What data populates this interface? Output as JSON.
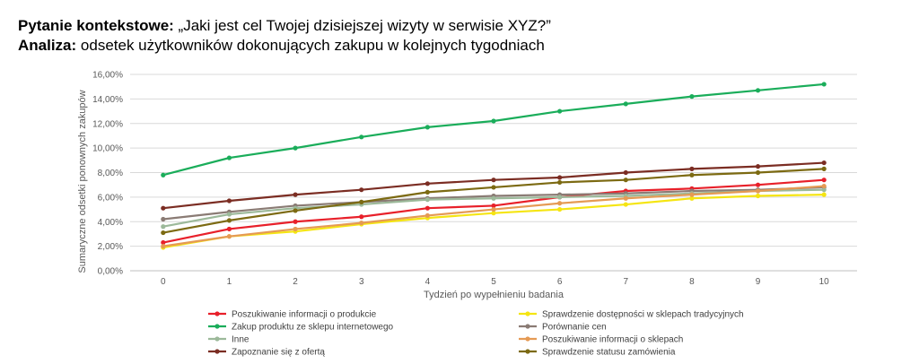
{
  "heading": {
    "line1_label": "Pytanie kontekstowe:",
    "line1_text": " „Jaki jest cel Twojej dzisiejszej wizyty w serwisie XYZ?”",
    "line2_label": "Analiza:",
    "line2_text": " odsetek użytkowników dokonujących zakupu w kolejnych tygodniach"
  },
  "chart_data": {
    "type": "line",
    "title": "",
    "xlabel": "Tydzień po wypełnieniu badania",
    "ylabel": "Sumaryczne odsetki ponownych zakupów",
    "x": [
      0,
      1,
      2,
      3,
      4,
      5,
      6,
      7,
      8,
      9,
      10
    ],
    "y_ticks": [
      "0,00%",
      "2,00%",
      "4,00%",
      "6,00%",
      "8,00%",
      "10,00%",
      "12,00%",
      "14,00%",
      "16,00%"
    ],
    "ylim": [
      0,
      16
    ],
    "grid": true,
    "legend_position": "bottom",
    "series": [
      {
        "name": "Poszukiwanie informacji o produkcie",
        "color": "#e8202a",
        "values": [
          2.3,
          3.4,
          4.0,
          4.4,
          5.1,
          5.3,
          6.0,
          6.5,
          6.7,
          7.0,
          7.4
        ]
      },
      {
        "name": "Sprawdzenie dostępności w sklepach tradycyjnych",
        "color": "#f5e512",
        "values": [
          1.9,
          2.8,
          3.2,
          3.8,
          4.3,
          4.7,
          5.0,
          5.4,
          5.9,
          6.1,
          6.2
        ]
      },
      {
        "name": "Zakup produktu ze sklepu internetowego",
        "color": "#1aad5a",
        "values": [
          7.8,
          9.2,
          10.0,
          10.9,
          11.7,
          12.2,
          13.0,
          13.6,
          14.2,
          14.7,
          15.2
        ]
      },
      {
        "name": "Porównanie cen",
        "color": "#8a7b74",
        "values": [
          4.2,
          4.8,
          5.3,
          5.6,
          5.9,
          6.1,
          6.2,
          6.3,
          6.5,
          6.6,
          6.8
        ]
      },
      {
        "name": "Inne",
        "color": "#9cb99a",
        "values": [
          3.6,
          4.6,
          5.1,
          5.4,
          5.8,
          5.9,
          6.0,
          6.1,
          6.3,
          6.5,
          6.6
        ]
      },
      {
        "name": "Poszukiwanie informacji o sklepach",
        "color": "#e59a54",
        "values": [
          2.0,
          2.8,
          3.4,
          3.9,
          4.5,
          5.0,
          5.5,
          5.9,
          6.2,
          6.5,
          6.9
        ]
      },
      {
        "name": "Zapoznanie się z ofertą",
        "color": "#7b2d23",
        "values": [
          5.1,
          5.7,
          6.2,
          6.6,
          7.1,
          7.4,
          7.6,
          8.0,
          8.3,
          8.5,
          8.8
        ]
      },
      {
        "name": "Sprawdzenie statusu zamówienia",
        "color": "#7c6a12",
        "values": [
          3.1,
          4.1,
          4.9,
          5.6,
          6.4,
          6.8,
          7.2,
          7.4,
          7.8,
          8.0,
          8.3
        ]
      }
    ]
  }
}
